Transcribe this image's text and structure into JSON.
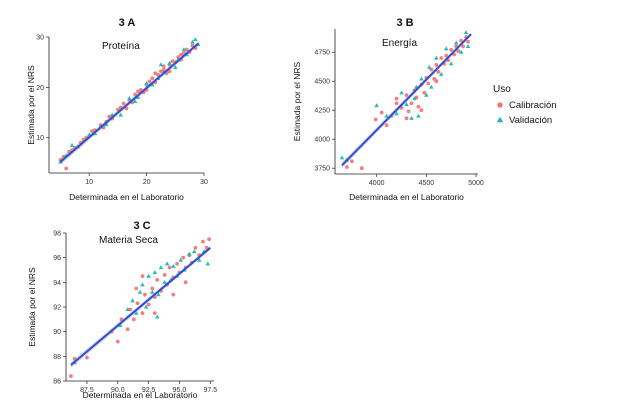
{
  "colors": {
    "calibracion": "#f0716d",
    "validacion": "#1fb7b1",
    "fit_line": "#2c4fd6",
    "band": "#c9c9d4",
    "axis": "#222222"
  },
  "legend": {
    "title": "Uso",
    "items": [
      {
        "label": "Calibración",
        "color": "#f0716d",
        "shape": "circle"
      },
      {
        "label": "Validación",
        "color": "#1fb7b1",
        "shape": "triangle"
      }
    ]
  },
  "chart_data": [
    {
      "id": "a",
      "type": "scatter",
      "panel_label": "3 A",
      "title": "Proteína",
      "xlabel": "Determinada en el Laboratorio",
      "ylabel": "Estimada por el NRS",
      "xlim": [
        3,
        30
      ],
      "ylim": [
        3,
        30
      ],
      "xticks": [
        10,
        20,
        30
      ],
      "yticks": [
        10,
        20,
        30
      ],
      "xtick_labels": [
        "10",
        "20",
        "30"
      ],
      "ytick_labels": [
        "10",
        "20",
        "30"
      ],
      "fit": {
        "x": [
          5,
          29
        ],
        "y": [
          5.2,
          28.7
        ]
      },
      "series": [
        {
          "name": "Calibración",
          "points": [
            [
              5,
              5.6
            ],
            [
              5.5,
              6.2
            ],
            [
              6.5,
              7.2
            ],
            [
              7,
              7.5
            ],
            [
              7.5,
              8
            ],
            [
              8.5,
              9
            ],
            [
              9.5,
              10
            ],
            [
              10.5,
              11.3
            ],
            [
              11,
              11.5
            ],
            [
              12,
              12.5
            ],
            [
              13,
              13.2
            ],
            [
              13.5,
              14.2
            ],
            [
              14,
              13.8
            ],
            [
              15,
              15.6
            ],
            [
              15.5,
              16
            ],
            [
              16,
              16.8
            ],
            [
              17,
              17.5
            ],
            [
              17.5,
              17
            ],
            [
              18,
              18.6
            ],
            [
              18.5,
              19.2
            ],
            [
              19,
              19.5
            ],
            [
              19.5,
              19
            ],
            [
              20,
              20.5
            ],
            [
              20.5,
              21.2
            ],
            [
              21,
              21.8
            ],
            [
              21.5,
              21
            ],
            [
              22,
              22.5
            ],
            [
              22.5,
              23.2
            ],
            [
              23,
              23.5
            ],
            [
              23.5,
              22.8
            ],
            [
              24,
              24.5
            ],
            [
              24.5,
              25.2
            ],
            [
              25,
              25
            ],
            [
              25.5,
              26
            ],
            [
              26,
              25.5
            ],
            [
              26.5,
              26.8
            ],
            [
              27,
              27.5
            ],
            [
              27.5,
              27
            ],
            [
              28,
              28.3
            ],
            [
              28.5,
              27.8
            ],
            [
              6,
              3.9
            ],
            [
              9,
              9.6
            ],
            [
              12.5,
              12
            ],
            [
              16.5,
              15.8
            ],
            [
              21.5,
              22.8
            ],
            [
              24,
              23.2
            ],
            [
              26,
              26.5
            ],
            [
              23,
              24.2
            ],
            [
              20,
              19.5
            ]
          ]
        },
        {
          "name": "Validación",
          "points": [
            [
              5,
              5.2
            ],
            [
              6,
              6.5
            ],
            [
              7,
              8.5
            ],
            [
              8,
              8.2
            ],
            [
              10,
              10.6
            ],
            [
              11,
              10.8
            ],
            [
              12,
              12.2
            ],
            [
              13,
              12.6
            ],
            [
              14,
              14.5
            ],
            [
              15.5,
              14.5
            ],
            [
              17,
              17.8
            ],
            [
              18,
              17.2
            ],
            [
              18.5,
              18
            ],
            [
              20,
              20.8
            ],
            [
              21,
              20.5
            ],
            [
              22,
              21.8
            ],
            [
              22.5,
              24.5
            ],
            [
              23,
              23
            ],
            [
              24,
              24.8
            ],
            [
              25,
              24
            ],
            [
              25.5,
              25.5
            ],
            [
              26.5,
              27.5
            ],
            [
              27,
              26.5
            ],
            [
              28,
              29
            ],
            [
              28.5,
              29.5
            ],
            [
              29,
              28.5
            ]
          ]
        }
      ]
    },
    {
      "id": "b",
      "type": "scatter",
      "panel_label": "3 B",
      "title": "Energía",
      "xlabel": "Determinada en el Laboratorio",
      "ylabel": "Estimada por el NRS",
      "xlim": [
        3580,
        5020
      ],
      "ylim": [
        3700,
        4950
      ],
      "xticks": [
        4000,
        4500,
        5000
      ],
      "yticks": [
        3750,
        4000,
        4250,
        4500,
        4750
      ],
      "xtick_labels": [
        "4000",
        "4500",
        "5000"
      ],
      "ytick_labels": [
        "3750",
        "4000",
        "4250",
        "4500",
        "4750"
      ],
      "fit": {
        "x": [
          3650,
          4950
        ],
        "y": [
          3775,
          4905
        ]
      },
      "series": [
        {
          "name": "Calibración",
          "points": [
            [
              3700,
              3760
            ],
            [
              3750,
              3810
            ],
            [
              3850,
              3750
            ],
            [
              3990,
              4170
            ],
            [
              4050,
              4230
            ],
            [
              4100,
              4120
            ],
            [
              4150,
              4200
            ],
            [
              4200,
              4310
            ],
            [
              4250,
              4270
            ],
            [
              4300,
              4380
            ],
            [
              4320,
              4240
            ],
            [
              4350,
              4310
            ],
            [
              4380,
              4420
            ],
            [
              4400,
              4360
            ],
            [
              4420,
              4280
            ],
            [
              4450,
              4470
            ],
            [
              4480,
              4400
            ],
            [
              4500,
              4530
            ],
            [
              4520,
              4480
            ],
            [
              4550,
              4600
            ],
            [
              4580,
              4520
            ],
            [
              4600,
              4640
            ],
            [
              4620,
              4580
            ],
            [
              4650,
              4700
            ],
            [
              4680,
              4650
            ],
            [
              4700,
              4720
            ],
            [
              4720,
              4680
            ],
            [
              4750,
              4770
            ],
            [
              4780,
              4730
            ],
            [
              4800,
              4800
            ],
            [
              4820,
              4760
            ],
            [
              4850,
              4850
            ],
            [
              4870,
              4800
            ],
            [
              4900,
              4880
            ],
            [
              4920,
              4840
            ],
            [
              4300,
              4180
            ],
            [
              4450,
              4250
            ],
            [
              4600,
              4500
            ],
            [
              4200,
              4350
            ]
          ]
        },
        {
          "name": "Validación",
          "points": [
            [
              3650,
              3840
            ],
            [
              3700,
              3820
            ],
            [
              4000,
              4290
            ],
            [
              4100,
              4200
            ],
            [
              4200,
              4220
            ],
            [
              4250,
              4400
            ],
            [
              4300,
              4300
            ],
            [
              4350,
              4180
            ],
            [
              4380,
              4350
            ],
            [
              4400,
              4450
            ],
            [
              4420,
              4200
            ],
            [
              4450,
              4520
            ],
            [
              4500,
              4380
            ],
            [
              4530,
              4620
            ],
            [
              4550,
              4450
            ],
            [
              4600,
              4700
            ],
            [
              4650,
              4560
            ],
            [
              4700,
              4780
            ],
            [
              4750,
              4650
            ],
            [
              4800,
              4830
            ],
            [
              4850,
              4750
            ],
            [
              4900,
              4920
            ],
            [
              4920,
              4800
            ]
          ]
        }
      ]
    },
    {
      "id": "c",
      "type": "scatter",
      "panel_label": "3 C",
      "title": "Materia Seca",
      "xlabel": "Determinada en el Laboratorio",
      "ylabel": "Estimada por el NRS",
      "xlim": [
        85.8,
        97.8
      ],
      "ylim": [
        86,
        98
      ],
      "xticks": [
        87.5,
        90.0,
        92.5,
        95.0,
        97.5
      ],
      "yticks": [
        86,
        88,
        90,
        92,
        94,
        96,
        98
      ],
      "xtick_labels": [
        "87.5",
        "90.0",
        "92.5",
        "95.0",
        "97.5"
      ],
      "ytick_labels": [
        "86",
        "88",
        "90",
        "92",
        "94",
        "96",
        "98"
      ],
      "fit": {
        "x": [
          86.2,
          97.5
        ],
        "y": [
          87.3,
          96.8
        ]
      },
      "series": [
        {
          "name": "Calibración",
          "points": [
            [
              86.2,
              86.4
            ],
            [
              86.5,
              87.8
            ],
            [
              87.5,
              87.9
            ],
            [
              89.5,
              90
            ],
            [
              90,
              89.2
            ],
            [
              90.3,
              91
            ],
            [
              90.8,
              90.2
            ],
            [
              91,
              91.8
            ],
            [
              91.3,
              91
            ],
            [
              91.6,
              92.3
            ],
            [
              92,
              91.5
            ],
            [
              92.2,
              93
            ],
            [
              92.5,
              92.2
            ],
            [
              92.8,
              93.5
            ],
            [
              93,
              92.8
            ],
            [
              93.2,
              94.2
            ],
            [
              93.5,
              93.3
            ],
            [
              93.8,
              94.6
            ],
            [
              94,
              93.8
            ],
            [
              94.2,
              95.2
            ],
            [
              94.5,
              94.4
            ],
            [
              94.8,
              95.5
            ],
            [
              95,
              94.8
            ],
            [
              95.3,
              96
            ],
            [
              95.5,
              95.2
            ],
            [
              95.8,
              96.2
            ],
            [
              96,
              95.6
            ],
            [
              96.3,
              96.8
            ],
            [
              96.6,
              96.2
            ],
            [
              96.9,
              97.3
            ],
            [
              97.2,
              96.8
            ],
            [
              97.4,
              97.5
            ],
            [
              93,
              91.5
            ],
            [
              94.5,
              93
            ],
            [
              92,
              94.5
            ],
            [
              95.5,
              94
            ],
            [
              91.5,
              93.5
            ]
          ]
        },
        {
          "name": "Validación",
          "points": [
            [
              86.5,
              87.5
            ],
            [
              90.2,
              90.5
            ],
            [
              90.8,
              91.8
            ],
            [
              91.2,
              92.5
            ],
            [
              91.5,
              91.5
            ],
            [
              92,
              93.8
            ],
            [
              92.3,
              92
            ],
            [
              92.5,
              94.5
            ],
            [
              92.8,
              93.2
            ],
            [
              93,
              94.8
            ],
            [
              93.3,
              93
            ],
            [
              93.5,
              95.2
            ],
            [
              93.8,
              94
            ],
            [
              94,
              95.5
            ],
            [
              94.3,
              94.2
            ],
            [
              94.5,
              95.3
            ],
            [
              94.8,
              94.5
            ],
            [
              95.1,
              95.8
            ],
            [
              95.4,
              95
            ],
            [
              95.8,
              96.3
            ],
            [
              96.2,
              96.5
            ],
            [
              96.6,
              95.8
            ],
            [
              97,
              96.5
            ],
            [
              97.3,
              95.5
            ],
            [
              93.2,
              91.2
            ],
            [
              91.8,
              93.2
            ]
          ]
        }
      ]
    }
  ]
}
